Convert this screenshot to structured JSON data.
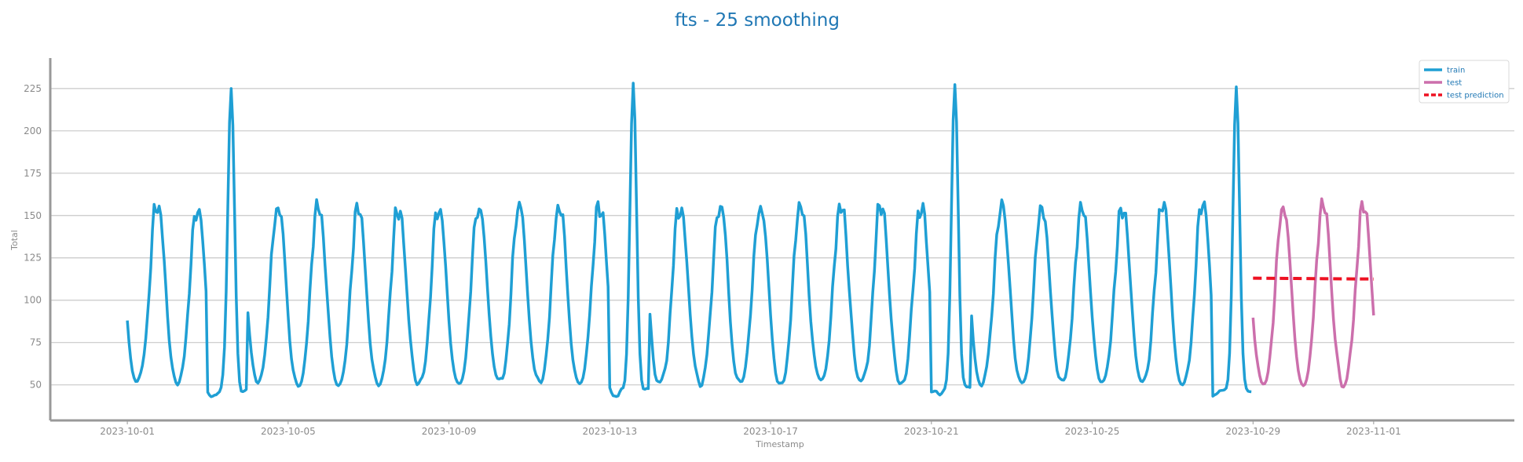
{
  "chart_data": {
    "type": "line",
    "title": "fts - 25 smoothing",
    "xlabel": "Timestamp",
    "ylabel": "Total",
    "xlim": [
      "2023-09-29T02:00",
      "2023-11-04T12:00"
    ],
    "ylim": [
      29,
      243
    ],
    "x_ticks": [
      "2023-10-01",
      "2023-10-05",
      "2023-10-09",
      "2023-10-13",
      "2023-10-17",
      "2023-10-21",
      "2023-10-25",
      "2023-10-29",
      "2023-11-01"
    ],
    "y_ticks": [
      50,
      75,
      100,
      125,
      150,
      175,
      200,
      225
    ],
    "grid": "horizontal",
    "legend": "top-right",
    "colors": {
      "train": "#1f9fd4",
      "test": "#cc6fac",
      "test prediction": "#ee1122",
      "title": "#1f77b4",
      "axis": "#999999",
      "grid": "#c8c8c8"
    },
    "series": [
      {
        "name": "train",
        "x_start": "2023-10-01T00:00",
        "step_hours": 1,
        "values": []
      },
      {
        "name": "test",
        "x_start": "2023-10-29T00:00",
        "step_hours": 1,
        "values": []
      },
      {
        "name": "test prediction",
        "x": [
          "2023-10-29T00:00",
          "2023-11-01T00:00"
        ],
        "values": [
          113,
          112.5
        ]
      }
    ]
  }
}
